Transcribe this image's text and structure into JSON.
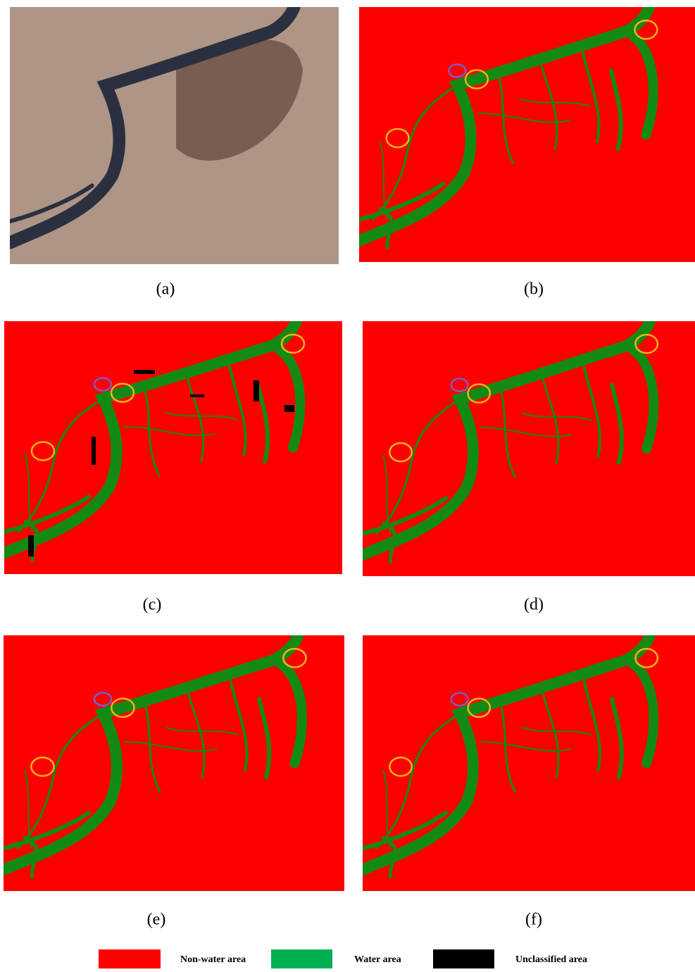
{
  "panels": [
    {
      "label": "(a)"
    },
    {
      "label": "(b)"
    },
    {
      "label": "(c)"
    },
    {
      "label": "(d)"
    },
    {
      "label": "(e)"
    },
    {
      "label": "(f)"
    }
  ],
  "legend": [
    {
      "label": "Non-water area"
    },
    {
      "label": "Water area"
    },
    {
      "label": "Unclassified area"
    }
  ]
}
